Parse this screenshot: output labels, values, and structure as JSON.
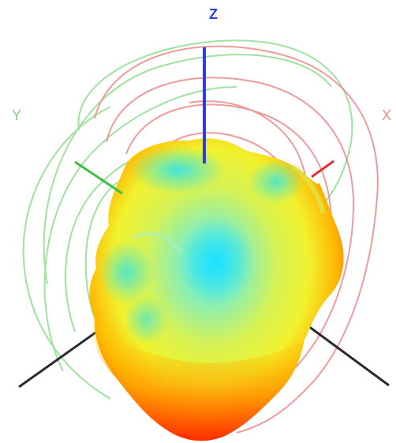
{
  "axes": {
    "z": {
      "label": "Z",
      "color": "#2d3fd6"
    },
    "y": {
      "label": "Y",
      "color": "#7fd07f"
    },
    "x": {
      "label": "X",
      "color": "#f08a8a"
    }
  },
  "colors": {
    "pattern_low": "#2ee8f0",
    "pattern_mid": "#d8f24a",
    "pattern_high": "#ff4a00",
    "contour_y": "#8fdc8f",
    "contour_x": "#ec8a8a",
    "axis_neg": "#2b2b2b"
  }
}
